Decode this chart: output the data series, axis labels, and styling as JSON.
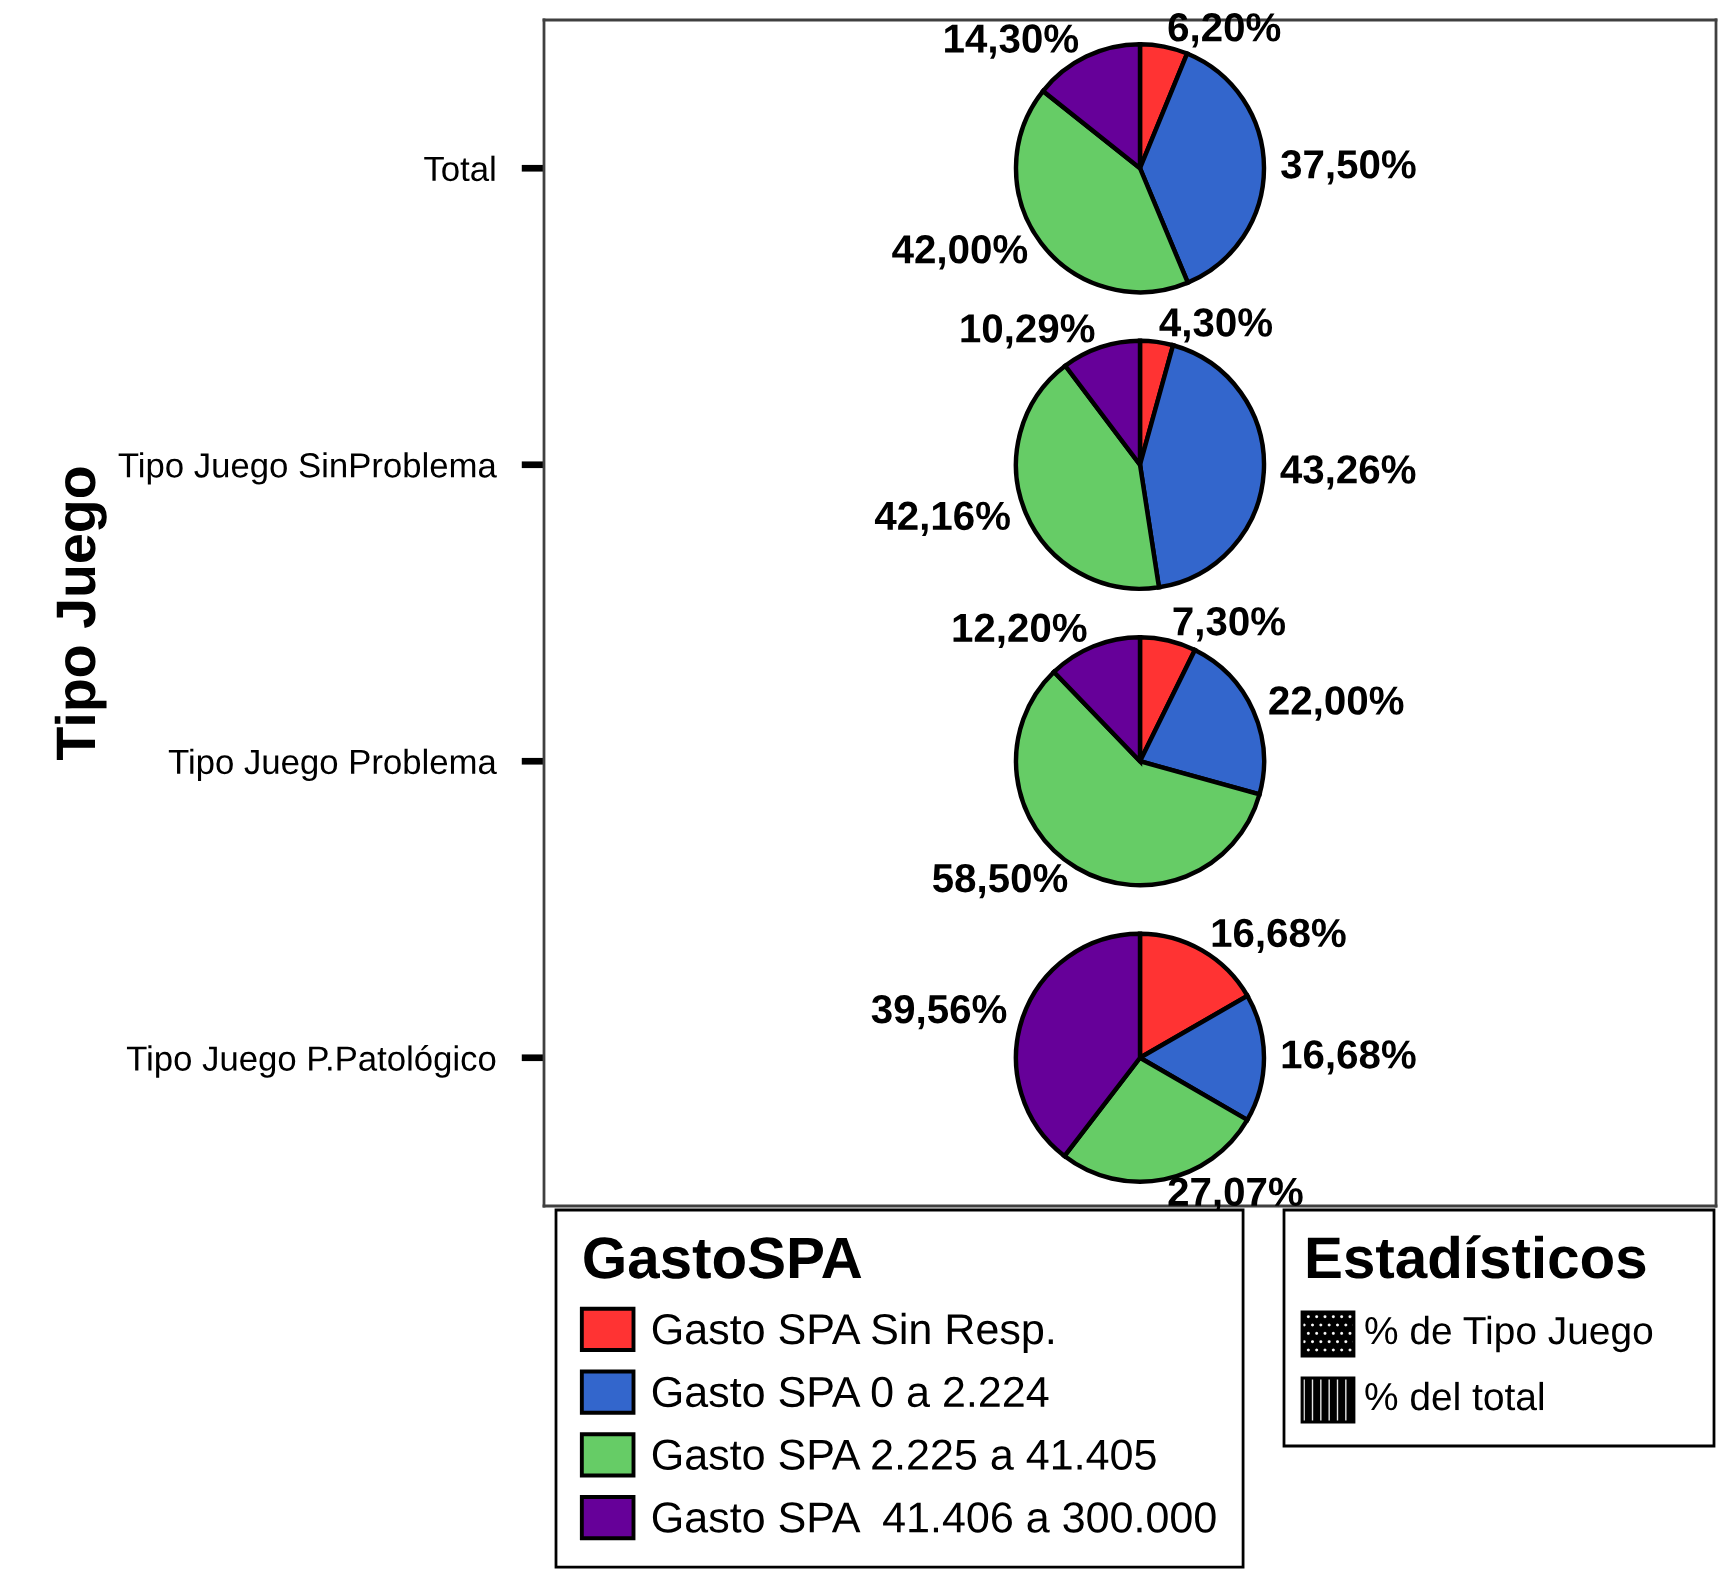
{
  "chart_data": {
    "type": "pie",
    "ylabel": "Tipo Juego",
    "categories": [
      "Gasto SPA Sin Resp.",
      "Gasto SPA 0 a 2.224",
      "Gasto SPA 2.225 a 41.405",
      "Gasto SPA  41.406 a 300.000"
    ],
    "colors": [
      "#ff3333",
      "#3366cc",
      "#66cc66",
      "#660099"
    ],
    "series": [
      {
        "name": "Total",
        "values": [
          6.2,
          37.5,
          42.0,
          14.3
        ],
        "value_labels": [
          "6,20%",
          "37,50%",
          "42,00%",
          "14,30%"
        ]
      },
      {
        "name": "Tipo Juego SinProblema",
        "values": [
          4.3,
          43.26,
          42.16,
          10.29
        ],
        "value_labels": [
          "4,30%",
          "43,26%",
          "42,16%",
          "10,29%"
        ]
      },
      {
        "name": "Tipo Juego Problema",
        "values": [
          7.3,
          22.0,
          58.5,
          12.2
        ],
        "value_labels": [
          "7,30%",
          "22,00%",
          "58,50%",
          "12,20%"
        ]
      },
      {
        "name": "Tipo Juego P.Patológico",
        "values": [
          16.68,
          16.68,
          27.07,
          39.56
        ],
        "value_labels": [
          "16,68%",
          "16,68%",
          "27,07%",
          "39,56%"
        ]
      }
    ],
    "legend": "bottom left",
    "legend_title": "GastoSPA",
    "annotations": [
      "Estadísticos",
      "% de Tipo Juego",
      "% del total"
    ]
  }
}
